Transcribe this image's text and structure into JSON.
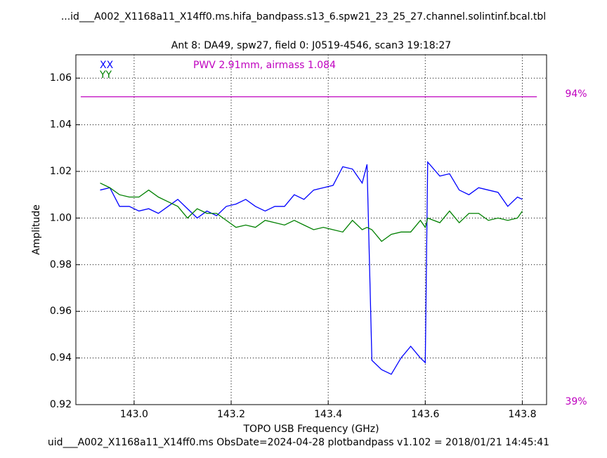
{
  "chart_data": {
    "type": "line",
    "title": "...id___A002_X1168a11_X14ff0.ms.hifa_bandpass.s13_6.spw21_23_25_27.channel.solintinf.bcal.tbl",
    "subtitle": "Ant 8: DA49,  spw27,  field 0: J0519-4546,  scan3  19:18:27",
    "x_label": "TOPO USB Frequency (GHz)",
    "y_label": "Amplitude",
    "footer": "uid___A002_X1168a11_X14ff0.ms  ObsDate=2024-04-28   plotbandpass v1.102 = 2018/01/21 14:45:41",
    "annotation": "PWV 2.91mm, airmass 1.084",
    "annotation_color": "#bf00bf",
    "grid": true,
    "xlim": [
      142.88,
      143.85
    ],
    "ylim": [
      0.92,
      1.07
    ],
    "y2lim": [
      39,
      101.5
    ],
    "xticks": [
      {
        "value": 143.0,
        "label": "143.0"
      },
      143.2,
      143.4,
      143.6,
      143.8
    ],
    "yticks": [
      0.92,
      0.94,
      0.96,
      0.98,
      {
        "value": 1.0,
        "label": "1.00"
      },
      1.02,
      1.04,
      1.06
    ],
    "y2ticks": [
      {
        "value": 39,
        "label": "39%"
      },
      {
        "value": 94,
        "label": "94%"
      }
    ],
    "x": [
      142.93,
      142.95,
      142.97,
      142.99,
      143.01,
      143.03,
      143.05,
      143.07,
      143.09,
      143.11,
      143.13,
      143.15,
      143.17,
      143.19,
      143.21,
      143.23,
      143.25,
      143.27,
      143.29,
      143.31,
      143.33,
      143.35,
      143.37,
      143.39,
      143.41,
      143.43,
      143.45,
      143.47,
      143.48,
      143.49,
      143.51,
      143.53,
      143.55,
      143.57,
      143.59,
      143.6,
      143.605,
      143.63,
      143.65,
      143.67,
      143.69,
      143.71,
      143.73,
      143.75,
      143.77,
      143.79,
      143.8
    ],
    "series": [
      {
        "name": "XX",
        "color": "#0000ff",
        "values": [
          1.012,
          1.013,
          1.005,
          1.005,
          1.003,
          1.004,
          1.002,
          1.005,
          1.008,
          1.004,
          1.0,
          1.003,
          1.001,
          1.005,
          1.006,
          1.008,
          1.005,
          1.003,
          1.005,
          1.005,
          1.01,
          1.008,
          1.012,
          1.013,
          1.014,
          1.022,
          1.021,
          1.015,
          1.023,
          0.939,
          0.935,
          0.933,
          0.94,
          0.945,
          0.94,
          0.938,
          1.024,
          1.018,
          1.019,
          1.012,
          1.01,
          1.013,
          1.012,
          1.011,
          1.005,
          1.009,
          1.008
        ]
      },
      {
        "name": "YY",
        "color": "#008000",
        "values": [
          1.015,
          1.013,
          1.01,
          1.009,
          1.009,
          1.012,
          1.009,
          1.007,
          1.005,
          1.0,
          1.004,
          1.002,
          1.002,
          0.999,
          0.996,
          0.997,
          0.996,
          0.999,
          0.998,
          0.997,
          0.999,
          0.997,
          0.995,
          0.996,
          0.995,
          0.994,
          0.999,
          0.995,
          0.996,
          0.995,
          0.99,
          0.993,
          0.994,
          0.994,
          0.999,
          0.996,
          1.0,
          0.998,
          1.003,
          0.998,
          1.002,
          1.002,
          0.999,
          1.0,
          0.999,
          1.0,
          1.003
        ]
      },
      {
        "color": "#bf00bf",
        "axis": "y2",
        "x": [
          142.89,
          143.83
        ],
        "values": [
          94,
          94
        ]
      }
    ]
  }
}
